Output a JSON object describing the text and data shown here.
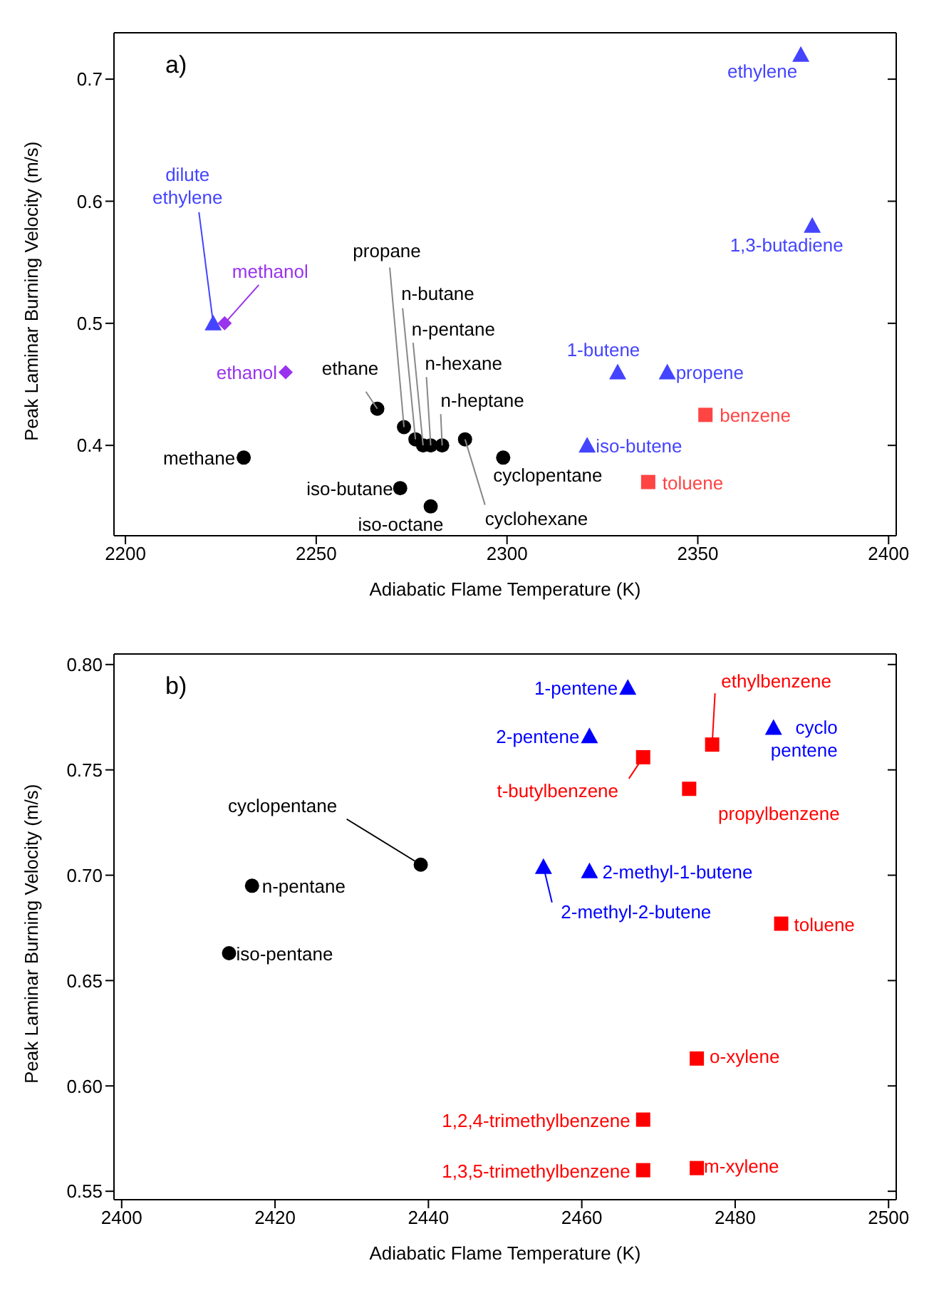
{
  "chart_data": [
    {
      "type": "scatter",
      "xlabel": "Adiabatic Flame Temperature (K)",
      "ylabel": "Peak Laminar Burning Velocity (m/s)",
      "xlim": [
        2197,
        2402
      ],
      "ylim": [
        0.326,
        0.738
      ],
      "xticks": [
        2200,
        2250,
        2300,
        2350,
        2400
      ],
      "yticks": [
        0.4,
        0.5,
        0.6,
        0.7
      ],
      "series": [
        {
          "color": "#000000",
          "marker": "circle",
          "x": [
            2231,
            2266,
            2273,
            2276,
            2278,
            2280,
            2283,
            2289,
            2299,
            2272,
            2280
          ],
          "values": [
            0.39,
            0.43,
            0.415,
            0.405,
            0.4,
            0.4,
            0.4,
            0.405,
            0.39,
            0.365,
            0.35
          ]
        },
        {
          "color": "#4444ff",
          "marker": "triangle",
          "x": [
            2377,
            2380,
            2223,
            2329,
            2342,
            2321
          ],
          "values": [
            0.72,
            0.58,
            0.5,
            0.46,
            0.46,
            0.4
          ]
        },
        {
          "color": "#9933ee",
          "marker": "diamond",
          "x": [
            2226,
            2242
          ],
          "values": [
            0.5,
            0.46
          ]
        },
        {
          "color": "#ff4444",
          "marker": "square",
          "x": [
            2352,
            2337
          ],
          "values": [
            0.425,
            0.37
          ]
        }
      ],
      "annotations": [
        "a)",
        {
          "text": "methane",
          "x": 2231,
          "y": 0.39
        },
        {
          "text": "ethane",
          "x": 2266,
          "y": 0.43
        },
        {
          "text": "propane",
          "x": 2273,
          "y": 0.415
        },
        {
          "text": "n-butane",
          "x": 2276,
          "y": 0.405
        },
        {
          "text": "n-pentane",
          "x": 2278,
          "y": 0.4
        },
        {
          "text": "n-hexane",
          "x": 2280,
          "y": 0.4
        },
        {
          "text": "n-heptane",
          "x": 2283,
          "y": 0.4
        },
        {
          "text": "cyclohexane",
          "x": 2289,
          "y": 0.405
        },
        {
          "text": "cyclopentane",
          "x": 2299,
          "y": 0.39
        },
        {
          "text": "iso-butane",
          "x": 2272,
          "y": 0.365
        },
        {
          "text": "iso-octane",
          "x": 2280,
          "y": 0.35
        },
        {
          "text": "ethylene",
          "x": 2377,
          "y": 0.72
        },
        {
          "text": "1,3-butadiene",
          "x": 2380,
          "y": 0.58
        },
        {
          "text": "dilute\nethylene",
          "x": 2223,
          "y": 0.5
        },
        {
          "text": "1-butene",
          "x": 2329,
          "y": 0.46
        },
        {
          "text": "propene",
          "x": 2342,
          "y": 0.46
        },
        {
          "text": "iso-butene",
          "x": 2321,
          "y": 0.4
        },
        {
          "text": "methanol",
          "x": 2226,
          "y": 0.5
        },
        {
          "text": "ethanol",
          "x": 2242,
          "y": 0.46
        },
        {
          "text": "benzene",
          "x": 2352,
          "y": 0.425
        },
        {
          "text": "toluene",
          "x": 2337,
          "y": 0.37
        }
      ]
    },
    {
      "type": "scatter",
      "xlabel": "Adiabatic Flame Temperature (K)",
      "ylabel": "Peak Laminar Burning Velocity (m/s)",
      "xlim": [
        2399,
        2501
      ],
      "ylim": [
        0.546,
        0.805
      ],
      "xticks": [
        2400,
        2420,
        2440,
        2460,
        2480,
        2500
      ],
      "yticks": [
        {
          "value": 0.55,
          "label": "0.55"
        },
        {
          "value": 0.6,
          "label": "0.60"
        },
        {
          "value": 0.65,
          "label": "0.65"
        },
        {
          "value": 0.7,
          "label": "0.70"
        },
        {
          "value": 0.75,
          "label": "0.75"
        },
        {
          "value": 0.8,
          "label": "0.80"
        }
      ],
      "series": [
        {
          "color": "#000000",
          "marker": "circle",
          "x": [
            2439,
            2417,
            2414
          ],
          "values": [
            0.705,
            0.695,
            0.663
          ]
        },
        {
          "color": "#0000ff",
          "marker": "triangle",
          "x": [
            2466,
            2461,
            2485,
            2455,
            2461
          ],
          "values": [
            0.789,
            0.766,
            0.77,
            0.704,
            0.702
          ]
        },
        {
          "color": "#ff0000",
          "marker": "square",
          "x": [
            2477,
            2468,
            2474,
            2486,
            2475,
            2468,
            2468,
            2475
          ],
          "values": [
            0.762,
            0.756,
            0.741,
            0.677,
            0.613,
            0.584,
            0.56,
            0.561
          ]
        }
      ],
      "annotations": [
        "b)",
        {
          "text": "1-pentene",
          "x": 2466,
          "y": 0.789
        },
        {
          "text": "2-pentene",
          "x": 2461,
          "y": 0.766
        },
        {
          "text": "cyclo\npentene",
          "x": 2485,
          "y": 0.77
        },
        {
          "text": "ethylbenzene",
          "x": 2477,
          "y": 0.762
        },
        {
          "text": "t-butylbenzene",
          "x": 2468,
          "y": 0.756
        },
        {
          "text": "propylbenzene",
          "x": 2474,
          "y": 0.741
        },
        {
          "text": "cyclopentane",
          "x": 2439,
          "y": 0.705
        },
        {
          "text": "n-pentane",
          "x": 2417,
          "y": 0.695
        },
        {
          "text": "iso-pentane",
          "x": 2414,
          "y": 0.663
        },
        {
          "text": "2-methyl-2-butene",
          "x": 2455,
          "y": 0.704
        },
        {
          "text": "2-methyl-1-butene",
          "x": 2461,
          "y": 0.702
        },
        {
          "text": "toluene",
          "x": 2486,
          "y": 0.677
        },
        {
          "text": "o-xylene",
          "x": 2475,
          "y": 0.613
        },
        {
          "text": "1,2,4-trimethylbenzene",
          "x": 2468,
          "y": 0.584
        },
        {
          "text": "1,3,5-trimethylbenzene",
          "x": 2468,
          "y": 0.56
        },
        {
          "text": "m-xylene",
          "x": 2475,
          "y": 0.561
        }
      ]
    }
  ]
}
